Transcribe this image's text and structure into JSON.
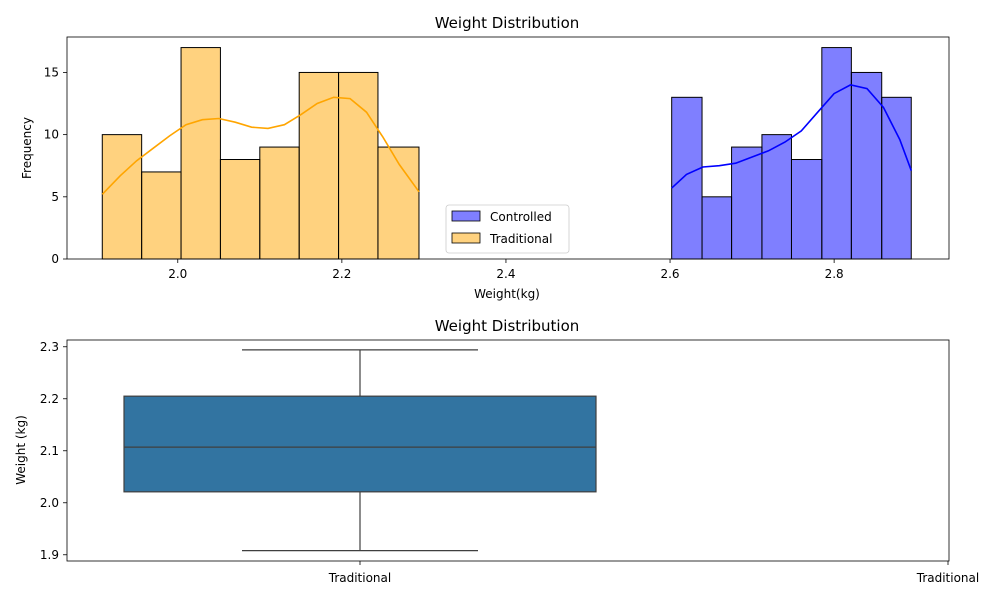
{
  "chart_data": [
    {
      "type": "histogram",
      "title": "Weight Distribution",
      "xlabel": "Weight(kg)",
      "ylabel": "Frequency",
      "xlim": [
        1.865,
        2.94
      ],
      "ylim": [
        0,
        17.85
      ],
      "xticks": [
        "2.0",
        "2.2",
        "2.4",
        "2.6",
        "2.8"
      ],
      "xtick_values": [
        2.0,
        2.2,
        2.4,
        2.6,
        2.8
      ],
      "yticks": [
        "0",
        "5",
        "10",
        "15"
      ],
      "ytick_values": [
        0,
        5,
        10,
        15
      ],
      "legend_position": "lower-center",
      "series": [
        {
          "name": "Controlled",
          "color": "#0000ff",
          "bin_edges": [
            2.602,
            2.639,
            2.675,
            2.712,
            2.748,
            2.785,
            2.821,
            2.858,
            2.894
          ],
          "counts": [
            13,
            5,
            9,
            10,
            8,
            17,
            15,
            13
          ],
          "kde": [
            [
              2.602,
              5.7
            ],
            [
              2.62,
              6.8
            ],
            [
              2.64,
              7.4
            ],
            [
              2.66,
              7.5
            ],
            [
              2.68,
              7.7
            ],
            [
              2.7,
              8.2
            ],
            [
              2.72,
              8.7
            ],
            [
              2.74,
              9.4
            ],
            [
              2.76,
              10.3
            ],
            [
              2.78,
              11.8
            ],
            [
              2.8,
              13.3
            ],
            [
              2.82,
              14.0
            ],
            [
              2.84,
              13.7
            ],
            [
              2.86,
              12.2
            ],
            [
              2.88,
              9.6
            ],
            [
              2.894,
              7.1
            ]
          ]
        },
        {
          "name": "Traditional",
          "color": "#ffa500",
          "bin_edges": [
            1.908,
            1.956,
            2.004,
            2.052,
            2.1,
            2.148,
            2.196,
            2.244,
            2.294
          ],
          "counts": [
            10,
            7,
            17,
            8,
            9,
            15,
            15,
            9
          ],
          "kde": [
            [
              1.908,
              5.2
            ],
            [
              1.93,
              6.7
            ],
            [
              1.95,
              7.9
            ],
            [
              1.97,
              8.9
            ],
            [
              1.99,
              9.9
            ],
            [
              2.01,
              10.8
            ],
            [
              2.03,
              11.2
            ],
            [
              2.05,
              11.3
            ],
            [
              2.07,
              11.0
            ],
            [
              2.09,
              10.6
            ],
            [
              2.11,
              10.5
            ],
            [
              2.13,
              10.8
            ],
            [
              2.15,
              11.6
            ],
            [
              2.17,
              12.5
            ],
            [
              2.19,
              13.0
            ],
            [
              2.21,
              12.9
            ],
            [
              2.23,
              11.8
            ],
            [
              2.25,
              9.8
            ],
            [
              2.27,
              7.6
            ],
            [
              2.294,
              5.4
            ]
          ]
        }
      ]
    },
    {
      "type": "box",
      "title": "Weight Distribution",
      "xlabel": "",
      "ylabel": "Weight (kg)",
      "ylim": [
        1.888,
        2.313
      ],
      "yticks": [
        "1.9",
        "2.0",
        "2.1",
        "2.2",
        "2.3"
      ],
      "ytick_values": [
        1.9,
        2.0,
        2.1,
        2.2,
        2.3
      ],
      "categories": [
        "Traditional"
      ],
      "extra_tick_label": "Traditional",
      "boxes": [
        {
          "name": "Traditional",
          "min": 1.908,
          "q1": 2.021,
          "median": 2.107,
          "q3": 2.205,
          "max": 2.294,
          "color": "#3274a1"
        }
      ]
    }
  ]
}
